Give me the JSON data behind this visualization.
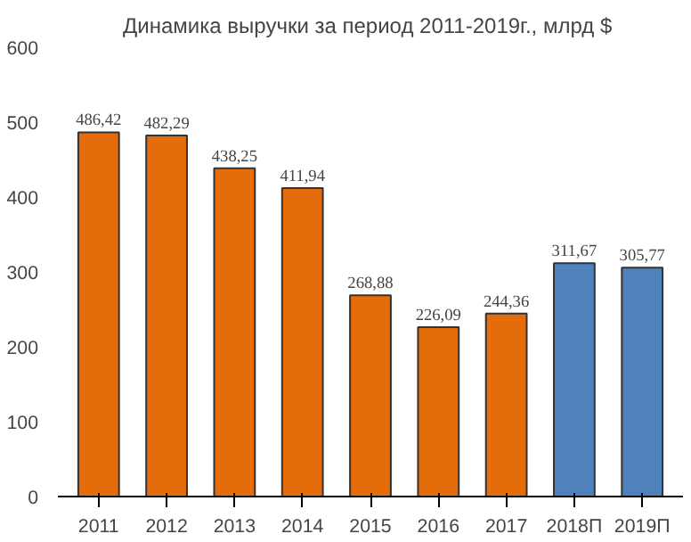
{
  "chart_data": {
    "type": "bar",
    "title": "Динамика выручки за период 2011-2019г.,  млрд $",
    "categories": [
      "2011",
      "2012",
      "2013",
      "2014",
      "2015",
      "2016",
      "2017",
      "2018П",
      "2019П"
    ],
    "values": [
      486.42,
      482.29,
      438.25,
      411.94,
      268.88,
      226.09,
      244.36,
      311.67,
      305.77
    ],
    "value_labels": [
      "486,42",
      "482,29",
      "438,25",
      "411,94",
      "268,88",
      "226,09",
      "244,36",
      "311,67",
      "305,77"
    ],
    "colors": [
      "#e46c0a",
      "#e46c0a",
      "#e46c0a",
      "#e46c0a",
      "#e46c0a",
      "#e46c0a",
      "#e46c0a",
      "#4f81bd",
      "#4f81bd"
    ],
    "ylim": [
      0,
      600
    ],
    "yticks": [
      0,
      100,
      200,
      300,
      400,
      500,
      600
    ],
    "grid": false
  }
}
